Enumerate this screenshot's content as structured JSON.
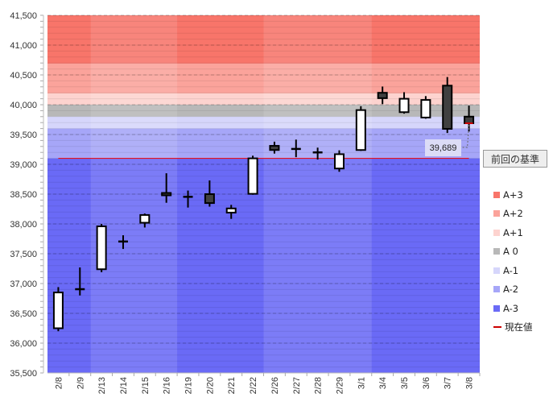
{
  "chart_data": {
    "type": "candlestick",
    "title": "",
    "ylim": [
      35500,
      41500
    ],
    "yticks": [
      35500,
      36000,
      36500,
      37000,
      37500,
      38000,
      38500,
      39000,
      39500,
      40000,
      40500,
      41000,
      41500
    ],
    "ytick_labels": [
      "35,500",
      "36,000",
      "36,500",
      "37,000",
      "37,500",
      "38,000",
      "38,500",
      "39,000",
      "39,500",
      "40,000",
      "40,500",
      "41,000",
      "41,500"
    ],
    "categories": [
      "2/8",
      "2/9",
      "2/13",
      "2/14",
      "2/15",
      "2/16",
      "2/19",
      "2/20",
      "2/21",
      "2/22",
      "2/26",
      "2/27",
      "2/28",
      "2/29",
      "3/1",
      "3/4",
      "3/5",
      "3/6",
      "3/7",
      "3/8"
    ],
    "week_groups": [
      [
        0,
        1
      ],
      [
        2,
        5
      ],
      [
        6,
        9
      ],
      [
        10,
        14
      ],
      [
        15,
        19
      ]
    ],
    "ohlc": [
      [
        36250,
        36940,
        36200,
        36850
      ],
      [
        36900,
        37270,
        36800,
        36905
      ],
      [
        37240,
        38000,
        37190,
        37960
      ],
      [
        37700,
        37810,
        37580,
        37705
      ],
      [
        38020,
        38175,
        37940,
        38150
      ],
      [
        38520,
        38850,
        38355,
        38480
      ],
      [
        38455,
        38560,
        38275,
        38455
      ],
      [
        38500,
        38730,
        38290,
        38350
      ],
      [
        38190,
        38320,
        38085,
        38260
      ],
      [
        38505,
        39145,
        38490,
        39100
      ],
      [
        39310,
        39380,
        39180,
        39240
      ],
      [
        39255,
        39415,
        39120,
        39258
      ],
      [
        39200,
        39280,
        39080,
        39198
      ],
      [
        38930,
        39235,
        38875,
        39170
      ],
      [
        39240,
        39975,
        39225,
        39910
      ],
      [
        40200,
        40305,
        40010,
        40110
      ],
      [
        39875,
        40210,
        39850,
        40100
      ],
      [
        39785,
        40145,
        39765,
        40080
      ],
      [
        40320,
        40465,
        39525,
        39595
      ],
      [
        39800,
        39985,
        39550,
        39689
      ]
    ],
    "bands": [
      {
        "name": "A+3",
        "from": 40690,
        "to": 41500,
        "color": "#f8756a"
      },
      {
        "name": "A+2",
        "from": 40190,
        "to": 40690,
        "color": "#fba39b"
      },
      {
        "name": "A+1",
        "from": 40000,
        "to": 40190,
        "color": "#fdd3cf"
      },
      {
        "name": "A 0",
        "from": 39800,
        "to": 40000,
        "color": "#b8b8b8"
      },
      {
        "name": "A-1",
        "from": 39600,
        "to": 39800,
        "color": "#d6d6fb"
      },
      {
        "name": "A-2",
        "from": 39100,
        "to": 39600,
        "color": "#a6a6f8"
      },
      {
        "name": "A-3",
        "from": 35500,
        "to": 39100,
        "color": "#6a6af6"
      }
    ],
    "reference_line": 39100,
    "current_value": 39689,
    "current_label": "39,689",
    "legend": [
      "A+3",
      "A+2",
      "A+1",
      "A 0",
      "A-1",
      "A-2",
      "A-3",
      "現在値"
    ],
    "legend_colors": [
      "#f8756a",
      "#fba39b",
      "#fdd3cf",
      "#b8b8b8",
      "#d6d6fb",
      "#a6a6f8",
      "#6a6af6",
      "#cc0000"
    ]
  },
  "ref_button": "前回の基準"
}
